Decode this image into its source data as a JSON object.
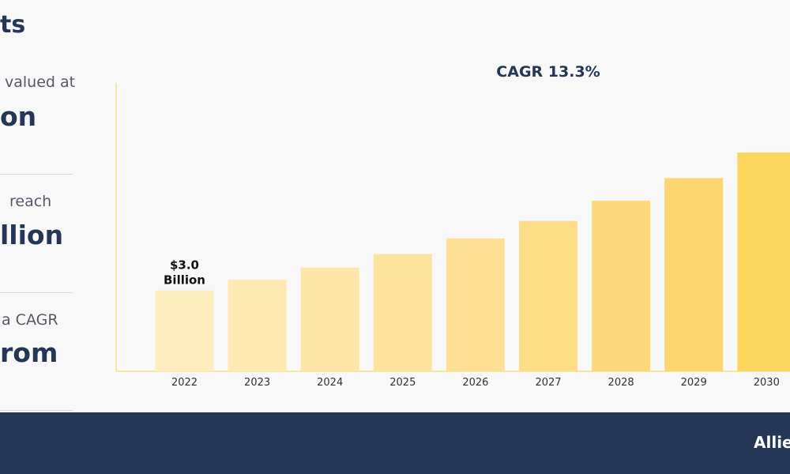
{
  "left_panel": {
    "heading": "ts",
    "stats": [
      {
        "line": "valued at",
        "big": "on"
      },
      {
        "line": "reach",
        "big": "llion"
      },
      {
        "line": "a CAGR",
        "big": "rom"
      }
    ]
  },
  "footer": {
    "brand": "Allie"
  },
  "chart_data": {
    "type": "bar",
    "title": "CAGR 13.3%",
    "categories": [
      "2022",
      "2023",
      "2024",
      "2025",
      "2026",
      "2027",
      "2028",
      "2029",
      "2030"
    ],
    "values": [
      3.0,
      3.4,
      3.85,
      4.35,
      4.93,
      5.58,
      6.33,
      7.17,
      8.12
    ],
    "annotations": [
      {
        "category": "2022",
        "lines": [
          "$3.0",
          "Billion"
        ]
      }
    ],
    "ylim": [
      0,
      10.7
    ],
    "colors": [
      "#fdedbe",
      "#fde9b1",
      "#fde6a7",
      "#fde39d",
      "#fde093",
      "#fddd87",
      "#fdd97c",
      "#fdd670",
      "#fdd660"
    ],
    "axis_color": "#f6e6a6",
    "grid": false
  }
}
